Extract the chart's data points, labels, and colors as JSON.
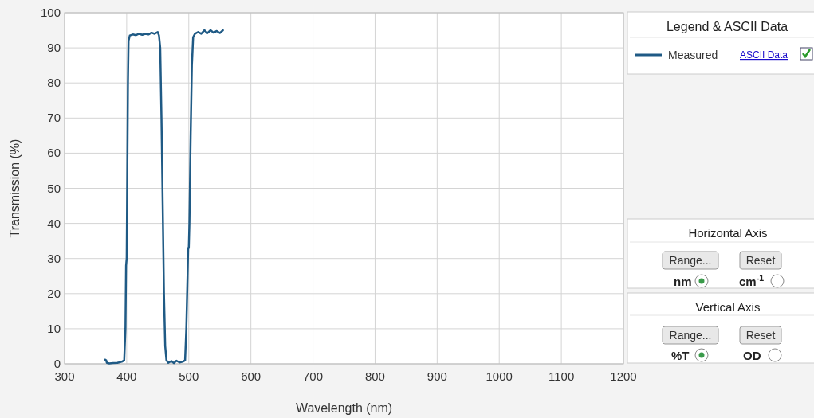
{
  "chart_data": {
    "type": "line",
    "xlabel": "Wavelength (nm)",
    "ylabel": "Transmission (%)",
    "xlim": [
      300,
      1200
    ],
    "xticks": [
      300,
      400,
      500,
      600,
      700,
      800,
      900,
      1000,
      1100,
      1200
    ],
    "ylim": [
      0,
      100
    ],
    "yticks": [
      0,
      10,
      20,
      30,
      40,
      50,
      60,
      70,
      80,
      90,
      100
    ],
    "grid": true,
    "legend": "right",
    "legend_title": "Legend & ASCII Data",
    "annotations": [
      "ASCII Data",
      "Horizontal Axis",
      "Range...",
      "Reset",
      "nm",
      "cm$^{-1}$",
      "Vertical Axis",
      "Range...",
      "Reset",
      "%T",
      "OD"
    ],
    "series": [
      {
        "name": "Measured",
        "color": "#1f5a85",
        "x": [
          365,
          367,
          368,
          372,
          378,
          385,
          392,
          396,
          398,
          399,
          400,
          401,
          402,
          403,
          405,
          410,
          415,
          420,
          425,
          430,
          435,
          440,
          445,
          450,
          452,
          454,
          456,
          458,
          460,
          462,
          464,
          467,
          472,
          476,
          480,
          485,
          490,
          494,
          496,
          498,
          499,
          500,
          501,
          503,
          505,
          507,
          510,
          515,
          520,
          525,
          530,
          535,
          540,
          545,
          550,
          555
        ],
        "values": [
          1.2,
          1.0,
          0.3,
          0.1,
          0.2,
          0.3,
          0.6,
          1,
          10,
          28,
          30,
          55,
          80,
          92,
          93.5,
          93.8,
          93.6,
          94,
          93.7,
          94,
          93.8,
          94.3,
          94,
          94.5,
          93.5,
          90,
          70,
          45,
          20,
          5,
          1,
          0.3,
          0.8,
          0.2,
          0.9,
          0.4,
          0.6,
          1,
          10,
          25,
          33,
          33,
          40,
          65,
          85,
          93,
          94,
          94.5,
          94,
          95,
          94.2,
          95,
          94.3,
          94.8,
          94.2,
          95
        ]
      }
    ]
  }
}
